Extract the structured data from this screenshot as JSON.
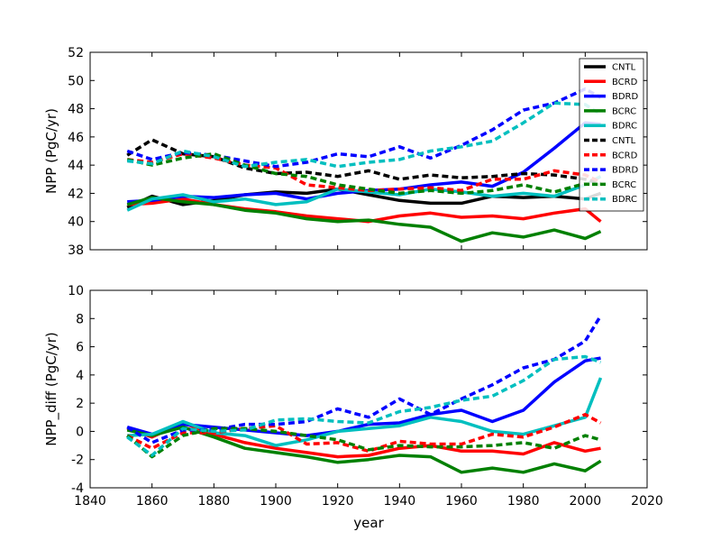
{
  "chart_data": [
    {
      "type": "line",
      "ylabel": "NPP (PgC/yr)",
      "xlabel": "",
      "xlim": [
        1840,
        2020
      ],
      "ylim": [
        38,
        52
      ],
      "xticks": [
        1840,
        1860,
        1880,
        1900,
        1920,
        1940,
        1960,
        1980,
        2000,
        2020
      ],
      "xtick_labels_visible": false,
      "yticks": [
        38,
        40,
        42,
        44,
        46,
        48,
        50,
        52
      ],
      "legend": {
        "placement": "top-right",
        "entries": [
          {
            "name": "CNTL",
            "color": "#000000",
            "style": "solid"
          },
          {
            "name": "BCRD",
            "color": "#ff0000",
            "style": "solid"
          },
          {
            "name": "BDRD",
            "color": "#0000ff",
            "style": "solid"
          },
          {
            "name": "BCRC",
            "color": "#008000",
            "style": "solid"
          },
          {
            "name": "BDRC",
            "color": "#00bfbf",
            "style": "solid"
          },
          {
            "name": "CNTL",
            "color": "#000000",
            "style": "dashed"
          },
          {
            "name": "BCRD",
            "color": "#ff0000",
            "style": "dashed"
          },
          {
            "name": "BDRD",
            "color": "#0000ff",
            "style": "dashed"
          },
          {
            "name": "BCRC",
            "color": "#008000",
            "style": "dashed"
          },
          {
            "name": "BDRC",
            "color": "#00bfbf",
            "style": "dashed"
          }
        ]
      },
      "series": [
        {
          "name": "CNTL",
          "color": "#000000",
          "style": "solid",
          "x": [
            1852,
            1860,
            1870,
            1880,
            1890,
            1900,
            1910,
            1920,
            1930,
            1940,
            1950,
            1960,
            1970,
            1980,
            1990,
            2000,
            2005
          ],
          "y": [
            41.0,
            41.8,
            41.2,
            41.5,
            41.9,
            42.1,
            42.0,
            42.3,
            41.9,
            41.5,
            41.3,
            41.3,
            41.8,
            41.7,
            41.8,
            41.6,
            42.0
          ]
        },
        {
          "name": "BCRD",
          "color": "#ff0000",
          "style": "solid",
          "x": [
            1852,
            1860,
            1870,
            1880,
            1890,
            1900,
            1910,
            1920,
            1930,
            1940,
            1950,
            1960,
            1970,
            1980,
            1990,
            2000,
            2005
          ],
          "y": [
            41.2,
            41.3,
            41.6,
            41.2,
            40.9,
            40.7,
            40.4,
            40.2,
            40.0,
            40.4,
            40.6,
            40.3,
            40.4,
            40.2,
            40.6,
            40.9,
            40.0
          ]
        },
        {
          "name": "BDRD",
          "color": "#0000ff",
          "style": "solid",
          "x": [
            1852,
            1860,
            1870,
            1880,
            1890,
            1900,
            1910,
            1920,
            1930,
            1940,
            1950,
            1960,
            1970,
            1980,
            1990,
            2000,
            2005
          ],
          "y": [
            41.4,
            41.5,
            41.8,
            41.7,
            41.9,
            42.0,
            41.6,
            42.0,
            42.2,
            42.3,
            42.6,
            42.8,
            42.5,
            43.5,
            45.2,
            47.0,
            46.9
          ]
        },
        {
          "name": "BCRC",
          "color": "#008000",
          "style": "solid",
          "x": [
            1852,
            1860,
            1870,
            1880,
            1890,
            1900,
            1910,
            1920,
            1930,
            1940,
            1950,
            1960,
            1970,
            1980,
            1990,
            2000,
            2005
          ],
          "y": [
            41.2,
            41.7,
            41.4,
            41.2,
            40.8,
            40.6,
            40.2,
            40.0,
            40.1,
            39.8,
            39.6,
            38.6,
            39.2,
            38.9,
            39.4,
            38.8,
            39.3
          ]
        },
        {
          "name": "BDRC",
          "color": "#00bfbf",
          "style": "solid",
          "x": [
            1852,
            1860,
            1870,
            1880,
            1890,
            1900,
            1910,
            1920,
            1930,
            1940,
            1950,
            1960,
            1970,
            1980,
            1990,
            2000,
            2005
          ],
          "y": [
            40.8,
            41.6,
            41.9,
            41.4,
            41.6,
            41.2,
            41.4,
            42.3,
            42.1,
            41.9,
            42.3,
            42.1,
            41.8,
            42.0,
            41.8,
            42.6,
            43.2
          ]
        },
        {
          "name": "CNTL",
          "color": "#000000",
          "style": "dashed",
          "x": [
            1852,
            1860,
            1870,
            1880,
            1890,
            1900,
            1910,
            1920,
            1930,
            1940,
            1950,
            1960,
            1970,
            1980,
            1990,
            2000,
            2005
          ],
          "y": [
            44.7,
            45.8,
            44.8,
            44.6,
            43.8,
            43.4,
            43.5,
            43.2,
            43.6,
            43.0,
            43.3,
            43.1,
            43.2,
            43.4,
            43.3,
            43.0,
            42.7
          ]
        },
        {
          "name": "BCRD",
          "color": "#ff0000",
          "style": "dashed",
          "x": [
            1852,
            1860,
            1870,
            1880,
            1890,
            1900,
            1910,
            1920,
            1930,
            1940,
            1950,
            1960,
            1970,
            1980,
            1990,
            2000,
            2005
          ],
          "y": [
            44.4,
            44.2,
            44.8,
            44.5,
            44.0,
            43.8,
            42.6,
            42.4,
            42.2,
            42.3,
            42.4,
            42.2,
            43.0,
            43.0,
            43.6,
            43.3,
            42.8
          ]
        },
        {
          "name": "BDRD",
          "color": "#0000ff",
          "style": "dashed",
          "x": [
            1852,
            1860,
            1870,
            1880,
            1890,
            1900,
            1910,
            1920,
            1930,
            1940,
            1950,
            1960,
            1970,
            1980,
            1990,
            2000,
            2005
          ],
          "y": [
            45.0,
            44.4,
            44.9,
            44.7,
            44.3,
            43.9,
            44.2,
            44.8,
            44.6,
            45.3,
            44.5,
            45.4,
            46.5,
            47.9,
            48.4,
            49.4,
            48.8
          ]
        },
        {
          "name": "BCRC",
          "color": "#008000",
          "style": "dashed",
          "x": [
            1852,
            1860,
            1870,
            1880,
            1890,
            1900,
            1910,
            1920,
            1930,
            1940,
            1950,
            1960,
            1970,
            1980,
            1990,
            2000,
            2005
          ],
          "y": [
            44.4,
            44.0,
            44.5,
            44.8,
            44.0,
            43.4,
            43.2,
            42.6,
            42.3,
            42.0,
            42.2,
            42.0,
            42.2,
            42.6,
            42.1,
            42.7,
            42.6
          ]
        },
        {
          "name": "BDRC",
          "color": "#00bfbf",
          "style": "dashed",
          "x": [
            1852,
            1860,
            1870,
            1880,
            1890,
            1900,
            1910,
            1920,
            1930,
            1940,
            1950,
            1960,
            1970,
            1980,
            1990,
            2000,
            2005
          ],
          "y": [
            44.3,
            44.1,
            45.0,
            44.6,
            43.9,
            44.2,
            44.4,
            43.9,
            44.2,
            44.4,
            45.0,
            45.3,
            45.7,
            47.0,
            48.4,
            48.3,
            47.6
          ]
        }
      ]
    },
    {
      "type": "line",
      "ylabel": "NPP_diff (PgC/yr)",
      "xlabel": "year",
      "xlim": [
        1840,
        2020
      ],
      "ylim": [
        -4,
        10
      ],
      "xticks": [
        1840,
        1860,
        1880,
        1900,
        1920,
        1940,
        1960,
        1980,
        2000,
        2020
      ],
      "yticks": [
        -4,
        -2,
        0,
        2,
        4,
        6,
        8,
        10
      ],
      "series": [
        {
          "name": "BCRD",
          "color": "#ff0000",
          "style": "solid",
          "x": [
            1852,
            1860,
            1870,
            1880,
            1890,
            1900,
            1910,
            1920,
            1930,
            1940,
            1950,
            1960,
            1970,
            1980,
            1990,
            2000,
            2005
          ],
          "y": [
            0.2,
            -0.4,
            0.6,
            -0.2,
            -0.8,
            -1.2,
            -1.5,
            -1.8,
            -1.7,
            -1.2,
            -1.0,
            -1.4,
            -1.4,
            -1.6,
            -0.8,
            -1.4,
            -1.2
          ]
        },
        {
          "name": "BDRD",
          "color": "#0000ff",
          "style": "solid",
          "x": [
            1852,
            1860,
            1870,
            1880,
            1890,
            1900,
            1910,
            1920,
            1930,
            1940,
            1950,
            1960,
            1970,
            1980,
            1990,
            2000,
            2005
          ],
          "y": [
            0.3,
            -0.2,
            0.5,
            0.3,
            0.1,
            -0.1,
            -0.3,
            0.0,
            0.5,
            0.6,
            1.2,
            1.5,
            0.7,
            1.5,
            3.5,
            5.0,
            5.2
          ]
        },
        {
          "name": "BCRC",
          "color": "#008000",
          "style": "solid",
          "x": [
            1852,
            1860,
            1870,
            1880,
            1890,
            1900,
            1910,
            1920,
            1930,
            1940,
            1950,
            1960,
            1970,
            1980,
            1990,
            2000,
            2005
          ],
          "y": [
            0.1,
            -0.3,
            0.3,
            -0.4,
            -1.2,
            -1.5,
            -1.8,
            -2.2,
            -2.0,
            -1.7,
            -1.8,
            -2.9,
            -2.6,
            -2.9,
            -2.3,
            -2.8,
            -2.1
          ]
        },
        {
          "name": "BDRC",
          "color": "#00bfbf",
          "style": "solid",
          "x": [
            1852,
            1860,
            1870,
            1880,
            1890,
            1900,
            1910,
            1920,
            1930,
            1940,
            1950,
            1960,
            1970,
            1980,
            1990,
            2000,
            2005
          ],
          "y": [
            -0.3,
            -0.2,
            0.7,
            -0.1,
            -0.3,
            -1.0,
            -0.6,
            0.0,
            0.2,
            0.4,
            1.0,
            0.7,
            0.0,
            -0.2,
            0.4,
            1.0,
            3.8
          ]
        },
        {
          "name": "BCRD",
          "color": "#ff0000",
          "style": "dashed",
          "x": [
            1852,
            1860,
            1870,
            1880,
            1890,
            1900,
            1910,
            1920,
            1930,
            1940,
            1950,
            1960,
            1970,
            1980,
            1990,
            2000,
            2005
          ],
          "y": [
            -0.3,
            -1.2,
            -0.1,
            -0.1,
            0.2,
            0.4,
            -0.9,
            -0.8,
            -1.4,
            -0.7,
            -0.9,
            -0.9,
            -0.2,
            -0.4,
            0.3,
            1.2,
            0.6
          ]
        },
        {
          "name": "BDRD",
          "color": "#0000ff",
          "style": "dashed",
          "x": [
            1852,
            1860,
            1870,
            1880,
            1890,
            1900,
            1910,
            1920,
            1930,
            1940,
            1950,
            1960,
            1970,
            1980,
            1990,
            2000,
            2005
          ],
          "y": [
            0.3,
            -0.8,
            0.1,
            0.1,
            0.5,
            0.5,
            0.7,
            1.6,
            1.0,
            2.3,
            1.2,
            2.3,
            3.3,
            4.5,
            5.1,
            6.4,
            8.2
          ]
        },
        {
          "name": "BCRC",
          "color": "#008000",
          "style": "dashed",
          "x": [
            1852,
            1860,
            1870,
            1880,
            1890,
            1900,
            1910,
            1920,
            1930,
            1940,
            1950,
            1960,
            1970,
            1980,
            1990,
            2000,
            2005
          ],
          "y": [
            -0.3,
            -1.8,
            -0.3,
            0.2,
            0.2,
            0.0,
            -0.3,
            -0.6,
            -1.3,
            -1.0,
            -1.1,
            -1.1,
            -1.0,
            -0.8,
            -1.2,
            -0.3,
            -0.6
          ]
        },
        {
          "name": "BDRC",
          "color": "#00bfbf",
          "style": "dashed",
          "x": [
            1852,
            1860,
            1870,
            1880,
            1890,
            1900,
            1910,
            1920,
            1930,
            1940,
            1950,
            1960,
            1970,
            1980,
            1990,
            2000,
            2005
          ],
          "y": [
            -0.4,
            -1.7,
            0.2,
            0.0,
            0.1,
            0.8,
            0.9,
            0.7,
            0.6,
            1.4,
            1.7,
            2.2,
            2.5,
            3.6,
            5.1,
            5.3,
            4.9
          ]
        }
      ]
    }
  ]
}
